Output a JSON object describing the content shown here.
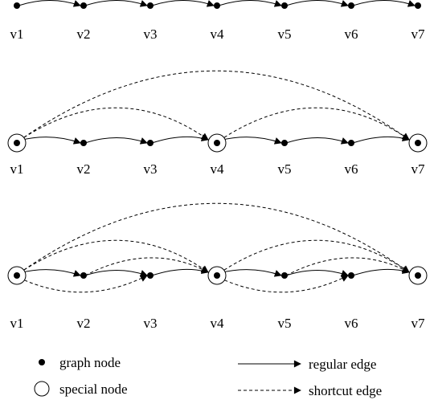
{
  "diagram": {
    "nodes": [
      "v1",
      "v2",
      "v3",
      "v4",
      "v5",
      "v6",
      "v7"
    ],
    "panels": [
      {
        "special": [],
        "regular_edges": [
          [
            0,
            1
          ],
          [
            1,
            2
          ],
          [
            2,
            3
          ],
          [
            3,
            4
          ],
          [
            4,
            5
          ],
          [
            5,
            6
          ]
        ],
        "shortcut_edges_above": [],
        "shortcut_edges_below": []
      },
      {
        "special": [
          0,
          3,
          6
        ],
        "regular_edges": [
          [
            0,
            1
          ],
          [
            1,
            2
          ],
          [
            2,
            3
          ],
          [
            3,
            4
          ],
          [
            4,
            5
          ],
          [
            5,
            6
          ]
        ],
        "shortcut_edges_above": [
          [
            0,
            3
          ],
          [
            3,
            6
          ],
          [
            0,
            6
          ]
        ],
        "shortcut_edges_below": []
      },
      {
        "special": [
          0,
          3,
          6
        ],
        "regular_edges": [
          [
            0,
            1
          ],
          [
            1,
            2
          ],
          [
            2,
            3
          ],
          [
            3,
            4
          ],
          [
            4,
            5
          ],
          [
            5,
            6
          ]
        ],
        "shortcut_edges_above": [
          [
            1,
            3
          ],
          [
            4,
            6
          ],
          [
            0,
            3
          ],
          [
            3,
            6
          ],
          [
            0,
            6
          ]
        ],
        "shortcut_edges_below": [
          [
            0,
            2
          ],
          [
            3,
            5
          ]
        ]
      }
    ]
  },
  "legend": {
    "graph_node": "graph node",
    "special_node": "special node",
    "regular_edge": "regular edge",
    "shortcut_edge": "shortcut edge"
  }
}
